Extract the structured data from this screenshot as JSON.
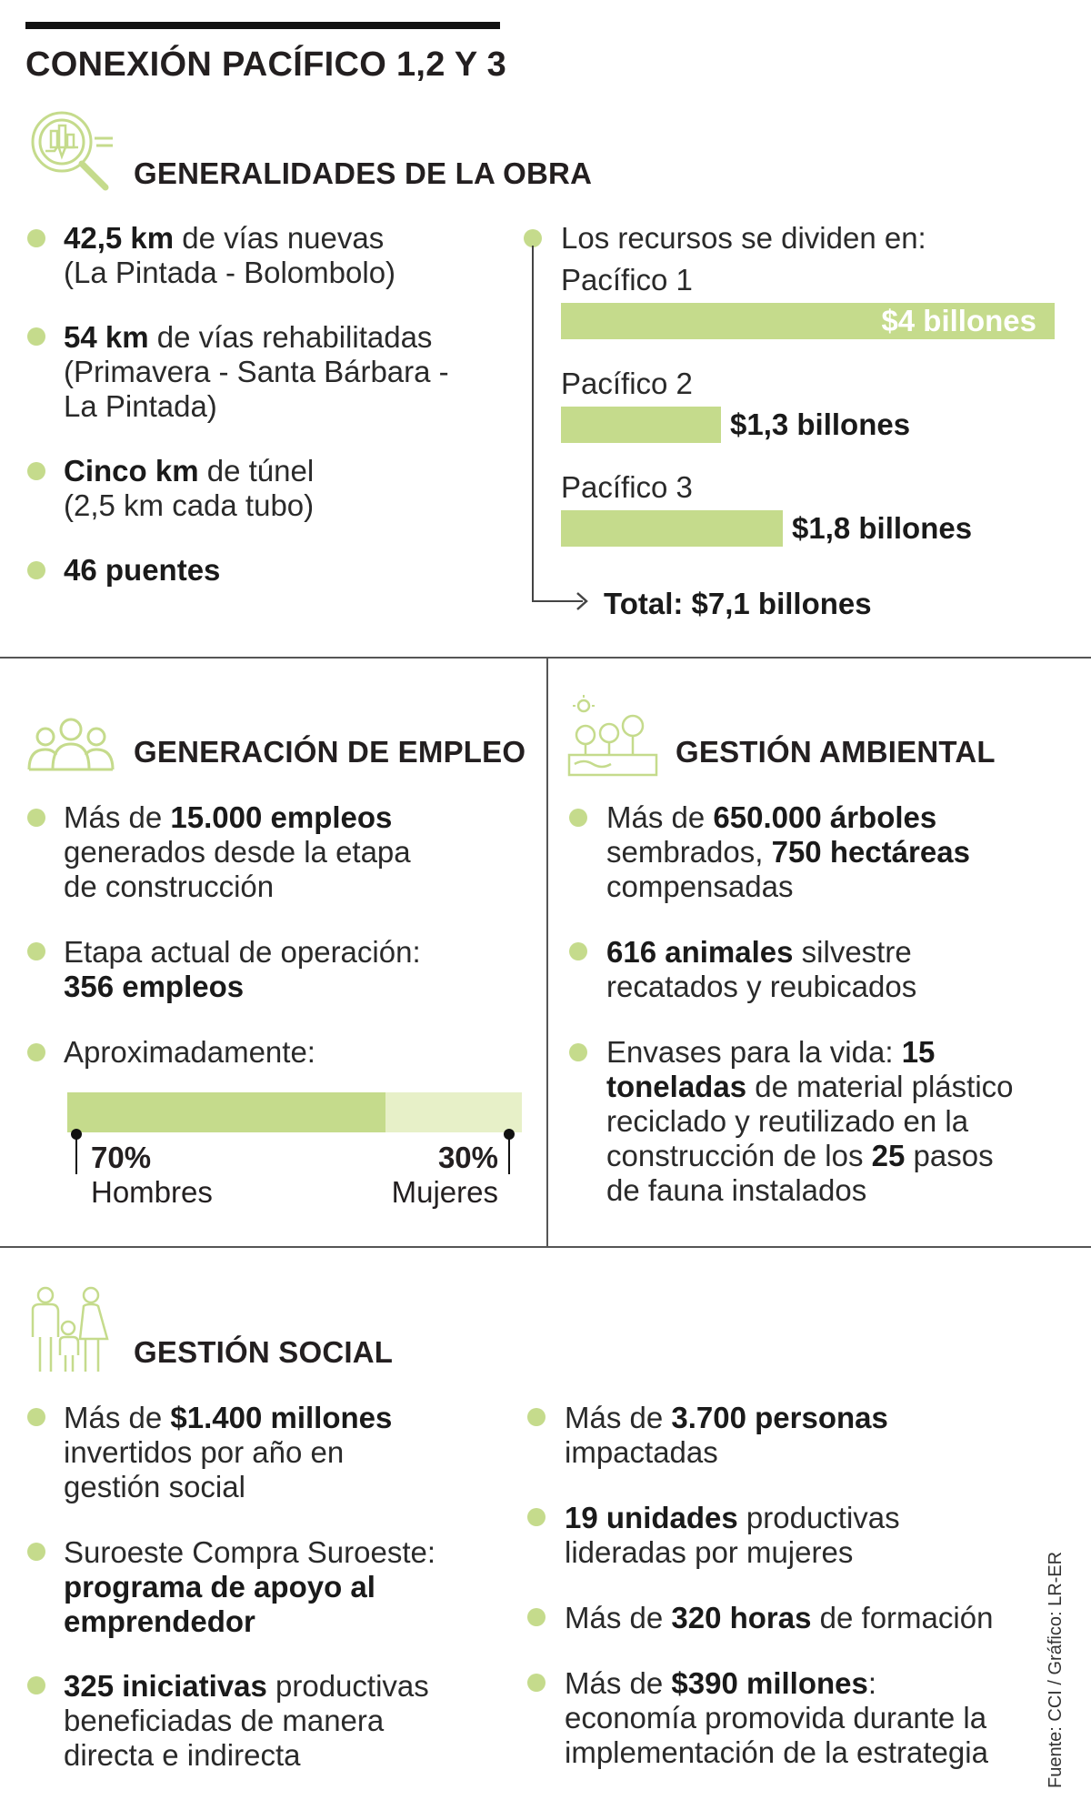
{
  "title": "CONEXIÓN PACÍFICO 1,2 Y 3",
  "source": "Fuente: CCI / Gráfico: LR-ER",
  "obra": {
    "heading": "GENERALIDADES DE LA OBRA",
    "items": [
      {
        "b": "42,5 km",
        "t": " de vías nuevas",
        "l2": "(La Pintada - Bolombolo)"
      },
      {
        "b": "54 km",
        "t": " de vías rehabilitadas",
        "l2": "(Primavera - Santa Bárbara -",
        "l3": "La Pintada)"
      },
      {
        "b": "Cinco km",
        "t": " de túnel",
        "l2": "(2,5 km cada tubo)"
      },
      {
        "b": "46 puentes"
      }
    ],
    "recursos_label": "Los recursos se dividen en:",
    "total_label": "Total: $7,1 billones"
  },
  "empleo": {
    "heading": "GENERACIÓN DE EMPLEO",
    "i1": {
      "pre": "Más de ",
      "b": "15.000 empleos",
      "l2": "generados desde la etapa",
      "l3": "de construcción"
    },
    "i2": {
      "l1": "Etapa actual de operación:",
      "b": "356 empleos"
    },
    "i3": {
      "l1": "Aproximadamente:"
    },
    "split": [
      {
        "pct": "70%",
        "label": "Hombres"
      },
      {
        "pct": "30%",
        "label": "Mujeres"
      }
    ]
  },
  "ambiental": {
    "heading": "GESTIÓN AMBIENTAL",
    "i1": {
      "pre": "Más de ",
      "b1": "650.000 árboles",
      "l2a": "sembrados, ",
      "b2": "750 hectáreas",
      "l3": "compensadas"
    },
    "i2": {
      "b": "616 animales",
      "t": " silvestre",
      "l2": "recatados y reubicados"
    },
    "i3": {
      "pre": "Envases para la vida: ",
      "b1": "15",
      "b2": "toneladas",
      "t2": " de material plástico",
      "l3": "reciclado y reutilizado en la",
      "l4a": "construcción de los ",
      "b3": "25",
      "l4b": " pasos",
      "l5": "de fauna instalados"
    }
  },
  "social": {
    "heading": "GESTIÓN SOCIAL",
    "left": [
      {
        "pre": "Más de ",
        "b": "$1.400 millones",
        "l2": "invertidos por año en",
        "l3": "gestión social"
      },
      {
        "l1": "Suroeste Compra Suroeste:",
        "b2": "programa de apoyo al",
        "b3": "emprendedor"
      },
      {
        "b": "325 iniciativas",
        "t": " productivas",
        "l2": "beneficiadas de manera",
        "l3": "directa e indirecta"
      }
    ],
    "right": [
      {
        "pre": "Más de ",
        "b": "3.700 personas",
        "l2": "impactadas"
      },
      {
        "b": "19 unidades",
        "t": " productivas",
        "l2": "lideradas por mujeres"
      },
      {
        "pre": "Más de ",
        "b": "320 horas",
        "t": " de formación"
      },
      {
        "pre": "Más de ",
        "b": "$390 millones",
        "t": ":",
        "l2": "economía promovida durante la",
        "l3": "implementación de la estrategia"
      }
    ]
  },
  "chart_data": [
    {
      "type": "bar",
      "orientation": "horizontal",
      "title": "Los recursos se dividen en:",
      "unit": "billones",
      "categories": [
        "Pacífico 1",
        "Pacífico 2",
        "Pacífico 3"
      ],
      "values": [
        4,
        1.3,
        1.8
      ],
      "value_labels": [
        "$4 billones",
        "$1,3 billones",
        "$1,8 billones"
      ],
      "color": "#c5db8c"
    },
    {
      "type": "bar",
      "orientation": "horizontal-stacked",
      "title": "Aproximadamente:",
      "categories": [
        "Hombres",
        "Mujeres"
      ],
      "values": [
        70,
        30
      ],
      "colors": [
        "#c5db8c",
        "#e7f0c8"
      ]
    }
  ]
}
